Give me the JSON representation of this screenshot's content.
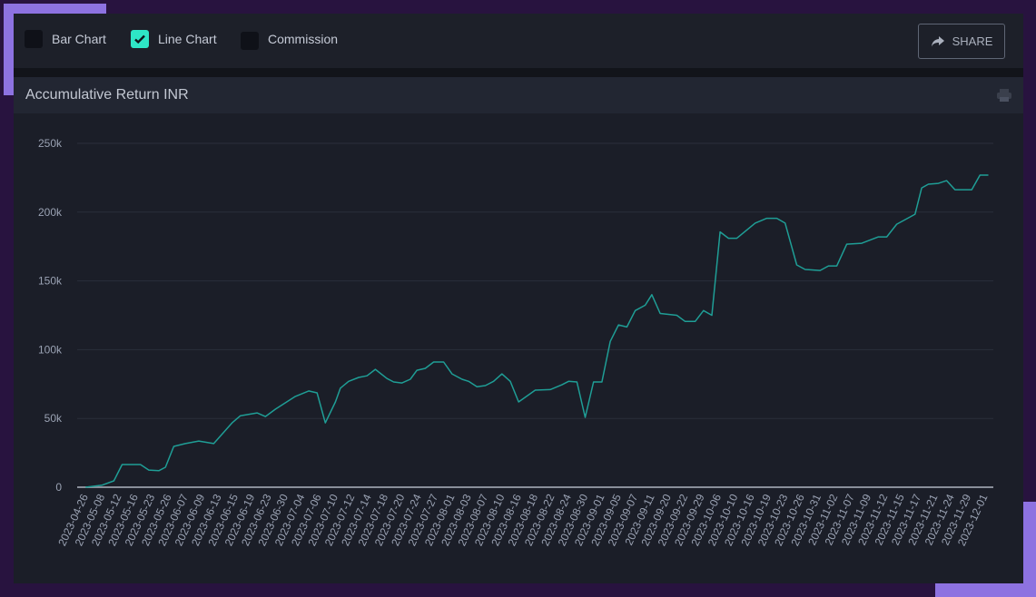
{
  "controls": {
    "bar_chart": {
      "label": "Bar Chart",
      "checked": false
    },
    "line_chart": {
      "label": "Line Chart",
      "checked": true
    },
    "commission": {
      "label": "Commission",
      "checked": false
    }
  },
  "share_label": "SHARE",
  "colors": {
    "line": "#1f9e96",
    "accent": "#2ee6c6",
    "grid": "#2b2f3b",
    "frame": "#8d72e1"
  },
  "chart_data": {
    "type": "line",
    "title": "Accumulative Return INR",
    "xlabel": "",
    "ylabel": "",
    "ylim": [
      0,
      250000
    ],
    "yticks": [
      0,
      50000,
      100000,
      150000,
      200000,
      250000
    ],
    "ytick_labels": [
      "0",
      "50k",
      "100k",
      "150k",
      "200k",
      "250k"
    ],
    "categories": [
      "2023-04-26",
      "2023-05-08",
      "2023-05-12",
      "2023-05-16",
      "2023-05-23",
      "2023-05-26",
      "2023-06-07",
      "2023-06-09",
      "2023-06-13",
      "2023-06-15",
      "2023-06-19",
      "2023-06-23",
      "2023-06-30",
      "2023-07-04",
      "2023-07-06",
      "2023-07-10",
      "2023-07-12",
      "2023-07-14",
      "2023-07-18",
      "2023-07-20",
      "2023-07-24",
      "2023-07-27",
      "2023-08-01",
      "2023-08-03",
      "2023-08-07",
      "2023-08-10",
      "2023-08-16",
      "2023-08-18",
      "2023-08-22",
      "2023-08-24",
      "2023-08-30",
      "2023-09-01",
      "2023-09-05",
      "2023-09-07",
      "2023-09-11",
      "2023-09-20",
      "2023-09-22",
      "2023-09-29",
      "2023-10-06",
      "2023-10-10",
      "2023-10-16",
      "2023-10-19",
      "2023-10-23",
      "2023-10-26",
      "2023-10-31",
      "2023-11-02",
      "2023-11-07",
      "2023-11-09",
      "2023-11-12",
      "2023-11-15",
      "2023-11-17",
      "2023-11-21",
      "2023-11-24",
      "2023-11-29",
      "2023-12-01"
    ],
    "series": [
      {
        "name": "Accumulative Return INR",
        "points": [
          [
            0,
            0
          ],
          [
            1,
            1500
          ],
          [
            1.7,
            4600
          ],
          [
            2.2,
            16500
          ],
          [
            3.3,
            16500
          ],
          [
            3.8,
            12500
          ],
          [
            4.4,
            12000
          ],
          [
            4.8,
            14500
          ],
          [
            5.3,
            29700
          ],
          [
            6,
            31700
          ],
          [
            6.8,
            33600
          ],
          [
            7.7,
            31700
          ],
          [
            8.8,
            46800
          ],
          [
            9.3,
            52000
          ],
          [
            10.3,
            54000
          ],
          [
            10.8,
            51400
          ],
          [
            11.4,
            56700
          ],
          [
            12.6,
            66000
          ],
          [
            13.4,
            70000
          ],
          [
            13.9,
            68600
          ],
          [
            14.4,
            46800
          ],
          [
            15,
            62000
          ],
          [
            15.3,
            72000
          ],
          [
            15.8,
            77000
          ],
          [
            16.4,
            79800
          ],
          [
            16.9,
            81000
          ],
          [
            17.4,
            85700
          ],
          [
            18.1,
            79000
          ],
          [
            18.5,
            76500
          ],
          [
            19,
            75800
          ],
          [
            19.5,
            78500
          ],
          [
            19.9,
            85000
          ],
          [
            20.4,
            86400
          ],
          [
            20.9,
            91000
          ],
          [
            21.5,
            91000
          ],
          [
            22,
            82400
          ],
          [
            22.6,
            78500
          ],
          [
            23,
            77000
          ],
          [
            23.5,
            73000
          ],
          [
            24,
            73900
          ],
          [
            24.5,
            77000
          ],
          [
            25,
            82400
          ],
          [
            25.5,
            77000
          ],
          [
            26,
            62000
          ],
          [
            27,
            70600
          ],
          [
            27.9,
            71000
          ],
          [
            28.6,
            74500
          ],
          [
            29,
            77000
          ],
          [
            29.5,
            76500
          ],
          [
            30,
            50800
          ],
          [
            30.5,
            76500
          ],
          [
            31,
            76500
          ],
          [
            31.5,
            106000
          ],
          [
            32,
            118000
          ],
          [
            32.5,
            116500
          ],
          [
            33,
            128400
          ],
          [
            33.6,
            132300
          ],
          [
            34,
            140000
          ],
          [
            34.5,
            126300
          ],
          [
            35.5,
            125000
          ],
          [
            36,
            120500
          ],
          [
            36.6,
            120500
          ],
          [
            37.1,
            128400
          ],
          [
            37.6,
            125000
          ],
          [
            38.1,
            185600
          ],
          [
            38.6,
            181000
          ],
          [
            39.1,
            181000
          ],
          [
            40.2,
            192000
          ],
          [
            40.9,
            195500
          ],
          [
            41.5,
            195500
          ],
          [
            42,
            192000
          ],
          [
            42.7,
            161600
          ],
          [
            43.2,
            158300
          ],
          [
            44.1,
            157600
          ],
          [
            44.6,
            160900
          ],
          [
            45.1,
            160900
          ],
          [
            45.7,
            176700
          ],
          [
            46.6,
            177400
          ],
          [
            47.6,
            182000
          ],
          [
            48.1,
            182000
          ],
          [
            48.7,
            191200
          ],
          [
            49.2,
            194500
          ],
          [
            49.8,
            198500
          ],
          [
            50.2,
            217600
          ],
          [
            50.6,
            220300
          ],
          [
            51.2,
            220900
          ],
          [
            51.7,
            222900
          ],
          [
            52.2,
            216300
          ],
          [
            53.2,
            216300
          ],
          [
            53.7,
            226900
          ],
          [
            54.2,
            226900
          ]
        ]
      }
    ],
    "grid": true,
    "legend": "none"
  }
}
